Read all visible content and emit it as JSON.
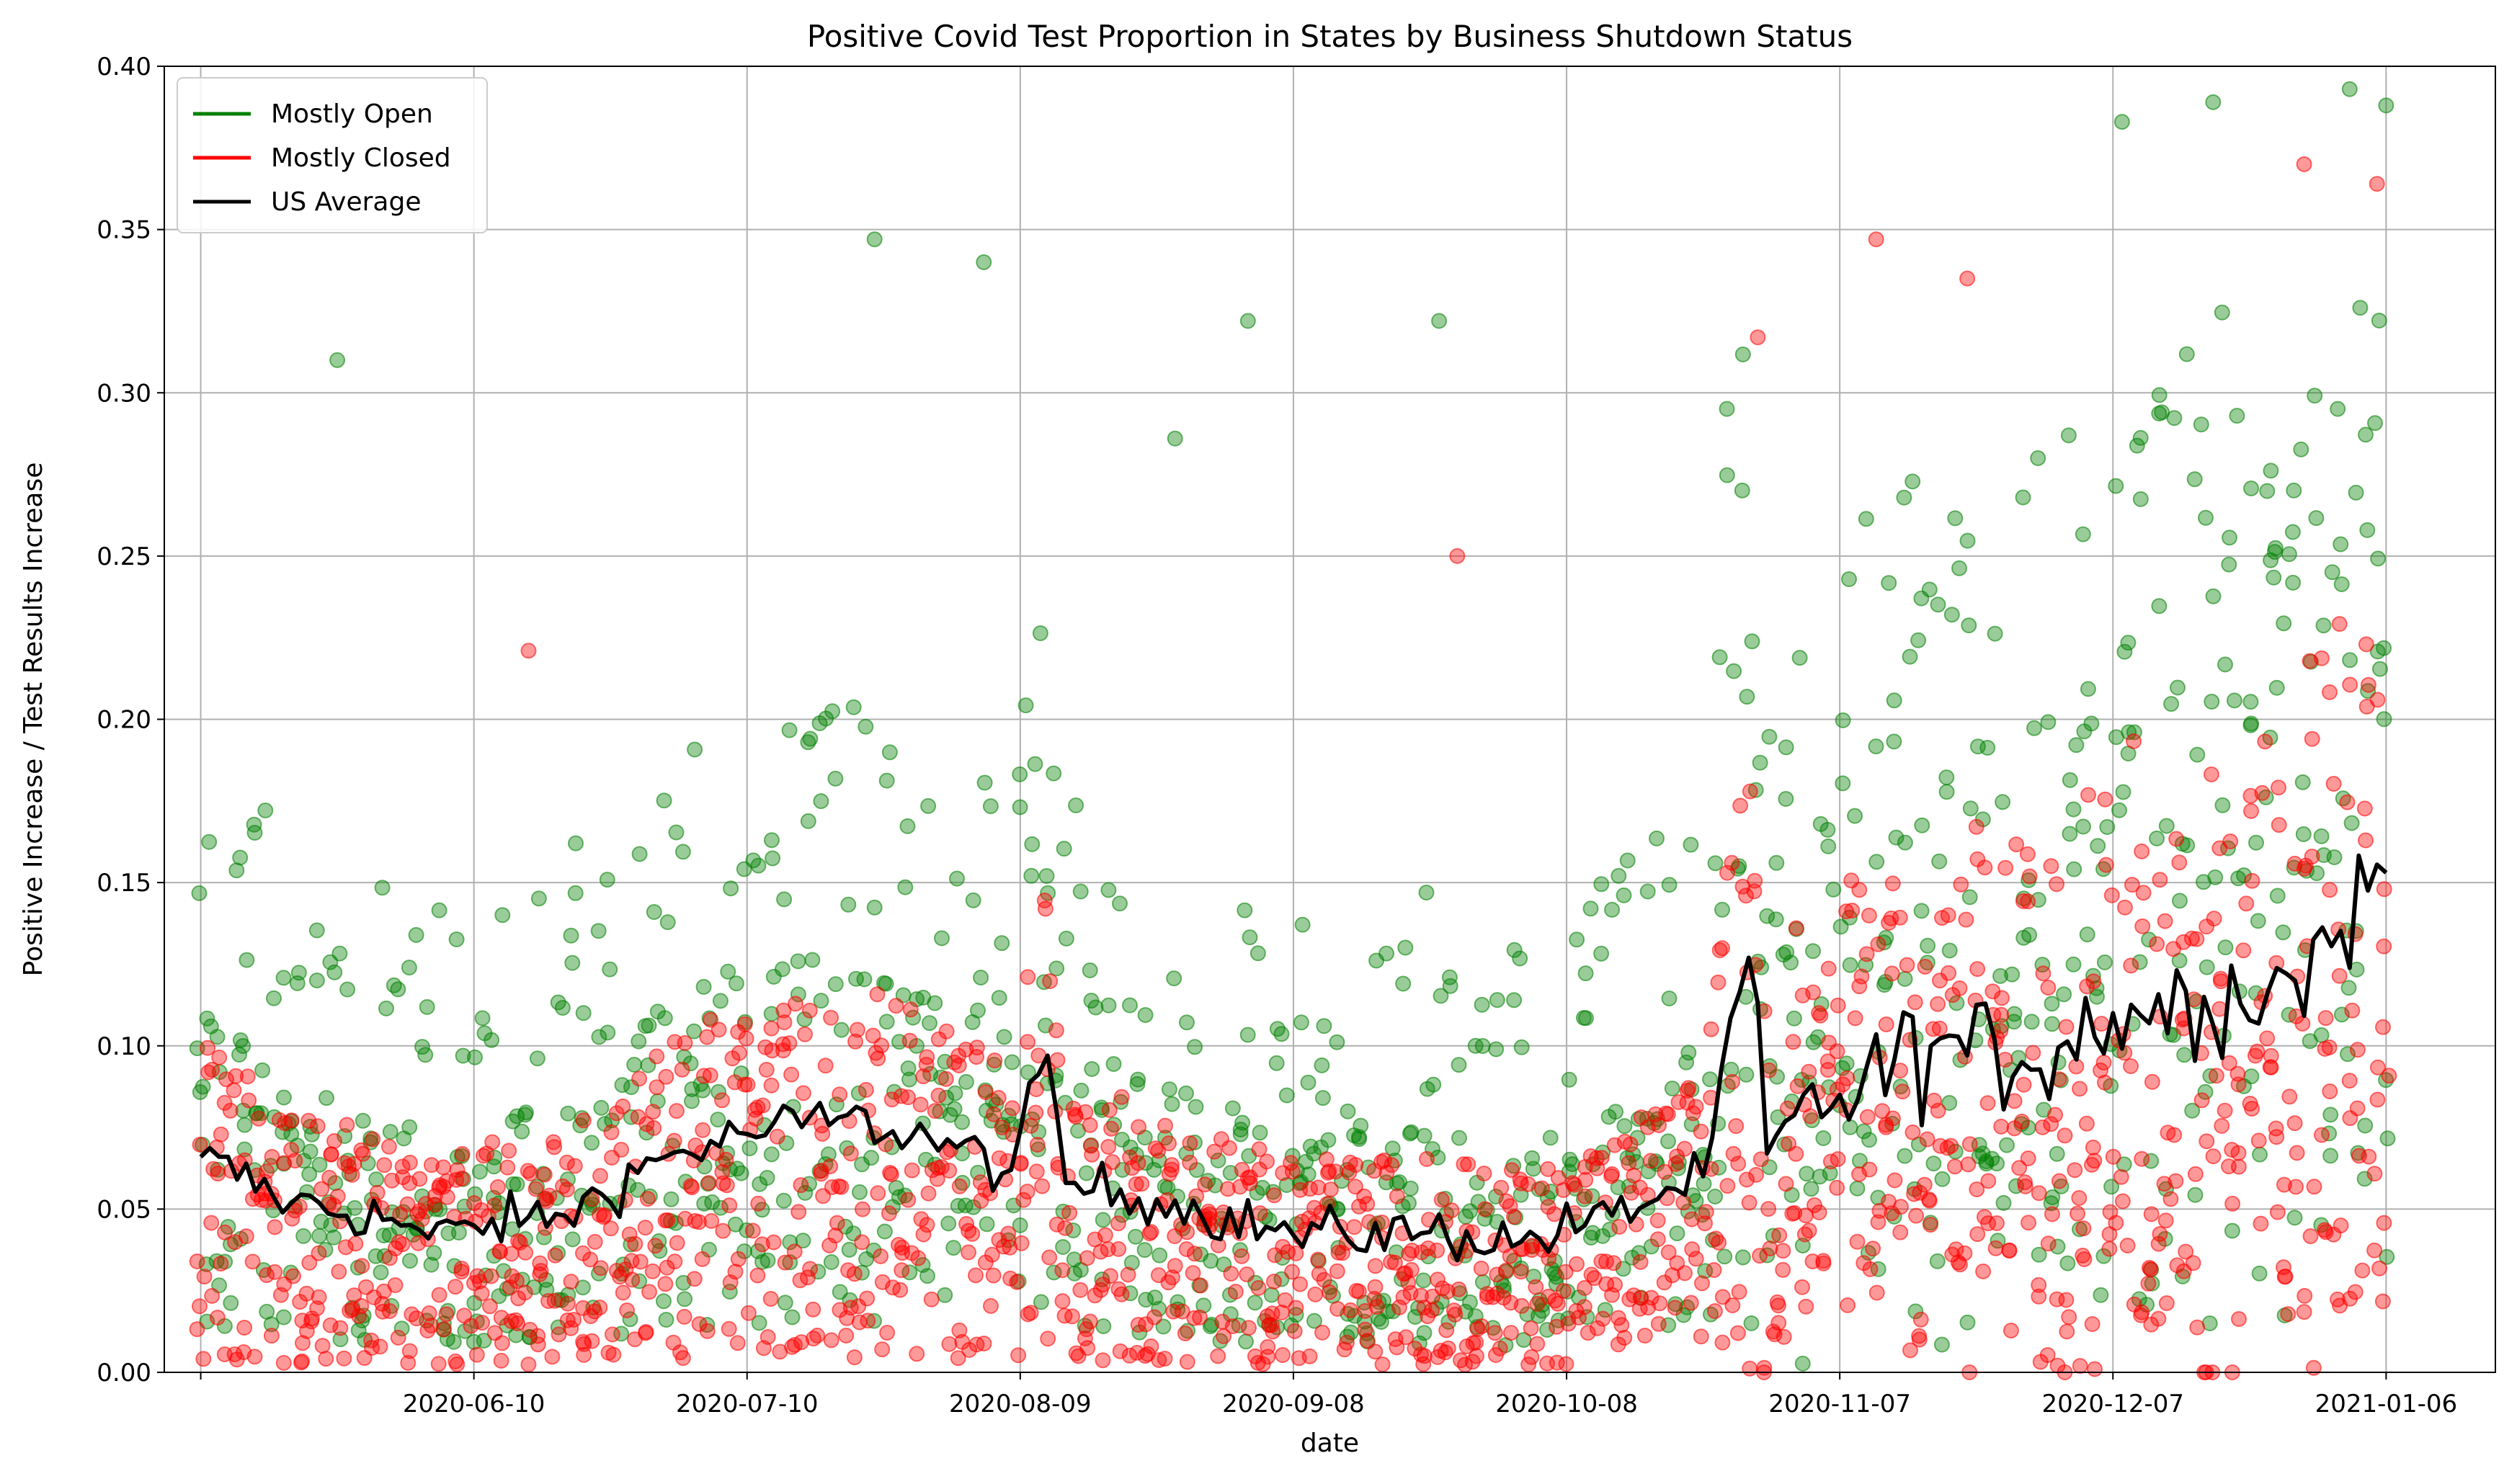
{
  "chart_data": {
    "type": "scatter",
    "title": "Positive Covid Test Proportion in States by Business Shutdown Status",
    "xlabel": "date",
    "ylabel": "Positive Increase / Test Results Increase",
    "xlim": [
      "2020-05-07",
      "2021-01-18"
    ],
    "ylim": [
      0,
      0.4
    ],
    "grid": true,
    "legend_position": "upper-left",
    "x_ticks": [
      "2020-06-10",
      "2020-07-10",
      "2020-08-09",
      "2020-09-08",
      "2020-10-08",
      "2020-11-07",
      "2020-12-07",
      "2021-01-06"
    ],
    "y_ticks": [
      "0.00",
      "0.05",
      "0.10",
      "0.15",
      "0.20",
      "0.25",
      "0.30",
      "0.35",
      "0.40"
    ],
    "x_range": [
      "2020-05-11",
      "2021-01-06"
    ],
    "series": [
      {
        "name": "Mostly Open",
        "kind": "scatter",
        "color": "#008000",
        "opacity": 0.4,
        "points_description": "many states per day; values mostly between 0.00 and 0.20, rising late in range",
        "notable_outliers": [
          {
            "x": "2020-05-26",
            "y": 0.31
          },
          {
            "x": "2020-07-24",
            "y": 0.347
          },
          {
            "x": "2020-08-05",
            "y": 0.34
          },
          {
            "x": "2020-08-26",
            "y": 0.286
          },
          {
            "x": "2020-09-03",
            "y": 0.322
          },
          {
            "x": "2020-09-24",
            "y": 0.322
          },
          {
            "x": "2020-12-08",
            "y": 0.383
          },
          {
            "x": "2020-12-18",
            "y": 0.389
          },
          {
            "x": "2021-01-02",
            "y": 0.393
          },
          {
            "x": "2021-01-06",
            "y": 0.388
          }
        ]
      },
      {
        "name": "Mostly Closed",
        "kind": "scatter",
        "color": "#ff0000",
        "opacity": 0.4,
        "points_description": "many states per day; values mostly between 0.00 and 0.15",
        "notable_outliers": [
          {
            "x": "2020-06-16",
            "y": 0.221
          },
          {
            "x": "2020-09-26",
            "y": 0.25
          },
          {
            "x": "2020-10-29",
            "y": 0.317
          },
          {
            "x": "2020-11-11",
            "y": 0.347
          },
          {
            "x": "2020-11-21",
            "y": 0.335
          },
          {
            "x": "2020-12-28",
            "y": 0.37
          },
          {
            "x": "2021-01-05",
            "y": 0.364
          }
        ]
      },
      {
        "name": "US Average",
        "kind": "line",
        "color": "#000000",
        "anchors": [
          {
            "x": "2020-05-11",
            "y": 0.066
          },
          {
            "x": "2020-05-21",
            "y": 0.052
          },
          {
            "x": "2020-06-01",
            "y": 0.047
          },
          {
            "x": "2020-06-05",
            "y": 0.041
          },
          {
            "x": "2020-06-10",
            "y": 0.045
          },
          {
            "x": "2020-06-20",
            "y": 0.048
          },
          {
            "x": "2020-06-30",
            "y": 0.065
          },
          {
            "x": "2020-07-10",
            "y": 0.073
          },
          {
            "x": "2020-07-20",
            "y": 0.078
          },
          {
            "x": "2020-07-30",
            "y": 0.072
          },
          {
            "x": "2020-08-08",
            "y": 0.062
          },
          {
            "x": "2020-08-12",
            "y": 0.097
          },
          {
            "x": "2020-08-14",
            "y": 0.058
          },
          {
            "x": "2020-08-24",
            "y": 0.053
          },
          {
            "x": "2020-09-08",
            "y": 0.042
          },
          {
            "x": "2020-09-23",
            "y": 0.043
          },
          {
            "x": "2020-10-03",
            "y": 0.04
          },
          {
            "x": "2020-10-13",
            "y": 0.048
          },
          {
            "x": "2020-10-23",
            "y": 0.06
          },
          {
            "x": "2020-10-28",
            "y": 0.127
          },
          {
            "x": "2020-10-30",
            "y": 0.067
          },
          {
            "x": "2020-11-07",
            "y": 0.085
          },
          {
            "x": "2020-11-17",
            "y": 0.1
          },
          {
            "x": "2020-11-27",
            "y": 0.095
          },
          {
            "x": "2020-12-07",
            "y": 0.11
          },
          {
            "x": "2020-12-17",
            "y": 0.115
          },
          {
            "x": "2020-12-27",
            "y": 0.12
          },
          {
            "x": "2021-01-06",
            "y": 0.153
          }
        ]
      }
    ]
  }
}
